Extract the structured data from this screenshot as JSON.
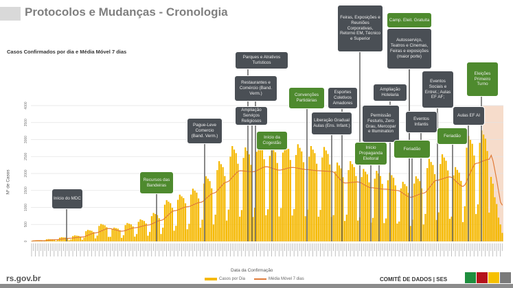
{
  "header": {
    "title": "Protocolos e Mudanças - Cronologia"
  },
  "chart_data": {
    "type": "bar",
    "title": "Casos Confirmados por dia e Média Móvel 7 dias",
    "xlabel": "Data da Confirmação",
    "ylabel": "Nº de Casos",
    "ylim": [
      0,
      4000
    ],
    "yticks": [
      0,
      500,
      1000,
      1500,
      2000,
      2500,
      3000,
      3500,
      4000
    ],
    "grid": true,
    "legend_position": "bottom",
    "colors": {
      "bars": "#f5b800",
      "moving_average": "#e07b39",
      "shaded_recent": "#f6dccb"
    },
    "series": [
      {
        "name": "Casos por Dia",
        "type": "bar",
        "values": [
          9,
          24,
          27,
          26,
          25,
          22,
          7,
          23,
          60,
          68,
          65,
          63,
          55,
          18,
          41,
          108,
          122,
          117,
          113,
          99,
          32,
          59,
          156,
          176,
          169,
          163,
          143,
          46,
          113,
          300,
          338,
          325,
          313,
          275,
          88,
          171,
          456,
          513,
          494,
          475,
          418,
          133,
          135,
          360,
          405,
          390,
          375,
          330,
          105,
          180,
          480,
          540,
          520,
          500,
          440,
          140,
          216,
          576,
          648,
          624,
          600,
          528,
          168,
          279,
          744,
          837,
          806,
          775,
          682,
          217,
          405,
          1080,
          1215,
          1170,
          1125,
          990,
          315,
          459,
          1224,
          1377,
          1326,
          1275,
          1122,
          357,
          518,
          1380,
          1553,
          1495,
          1438,
          1265,
          403,
          639,
          1704,
          1917,
          1846,
          1775,
          1562,
          497,
          788,
          2100,
          2363,
          2275,
          2188,
          1925,
          613,
          936,
          2496,
          2808,
          2704,
          2600,
          2288,
          728,
          923,
          2460,
          2768,
          2665,
          2563,
          2255,
          718,
          990,
          2640,
          2970,
          2860,
          2750,
          2420,
          770,
          945,
          2520,
          2835,
          2730,
          2625,
          2310,
          735,
          981,
          2616,
          2943,
          2834,
          2725,
          2398,
          763,
          954,
          2544,
          2862,
          2756,
          2650,
          2332,
          742,
          936,
          2496,
          2808,
          2704,
          2600,
          2288,
          728,
          927,
          2472,
          2781,
          2678,
          2575,
          2266,
          721,
          774,
          2064,
          2322,
          2236,
          2150,
          1892,
          602,
          788,
          2100,
          2363,
          2275,
          2188,
          1925,
          613,
          711,
          1896,
          2133,
          2054,
          1975,
          1738,
          553,
          693,
          1848,
          2079,
          2002,
          1925,
          1694,
          539,
          675,
          1800,
          2025,
          1950,
          1875,
          1650,
          525,
          585,
          1560,
          1755,
          1690,
          1625,
          1430,
          455,
          639,
          1704,
          1917,
          1846,
          1775,
          1562,
          497,
          810,
          2160,
          2430,
          2340,
          2250,
          1980,
          630,
          855,
          2280,
          2565,
          2470,
          2375,
          2090,
          665,
          729,
          1944,
          2187,
          2106,
          2025,
          1782,
          567,
          1035,
          2760,
          3105,
          2990,
          2875,
          2530,
          805,
          1089,
          2904,
          3267,
          3146,
          3025,
          2662,
          847,
          1900,
          1700,
          1300,
          1100,
          700,
          500,
          250
        ]
      },
      {
        "name": "Média Móvel 7 dias",
        "type": "line",
        "derived_from": "Casos por Dia",
        "window": 7
      }
    ],
    "shaded_last_days": 11
  },
  "annotations": [
    {
      "label": "Início do MDC",
      "style": "dark"
    },
    {
      "label": "Recursos das Bandeiras",
      "style": "green"
    },
    {
      "label": "Pague-Leve Comercio (Band. Verm.)",
      "style": "dark"
    },
    {
      "label": "Parques e Atrativos Turísticos",
      "style": "dark"
    },
    {
      "label": "Restaurantes e Comércio (Band. Verm.)",
      "style": "dark"
    },
    {
      "label": "Ampliação Serviços Religiosos",
      "style": "dark"
    },
    {
      "label": "Início da Cogestão",
      "style": "green"
    },
    {
      "label": "Convenções Partidárias",
      "style": "green"
    },
    {
      "label": "Esportes Coletivos Amadores",
      "style": "dark"
    },
    {
      "label": "Liberação Gradual Aulas (Ens. Infant.)",
      "style": "dark"
    },
    {
      "label": "Feiras, Exposições e Reuniões Corporativas, Retorno EM, Técnico e Superior",
      "style": "dark"
    },
    {
      "label": "Permissão Festuris, Zero Grau, Mercopar e Illumination",
      "style": "dark"
    },
    {
      "label": "Início Propaganda Eleitoral",
      "style": "green"
    },
    {
      "label": "Ampliação Hotelaria",
      "style": "dark"
    },
    {
      "label": "Camp. Eleit. Gratuita",
      "style": "green"
    },
    {
      "label": "Autosserviço, Teatros e Cinemas, Feiras e exposições (maior porte)",
      "style": "dark"
    },
    {
      "label": "Eventos Infantis",
      "style": "dark"
    },
    {
      "label": "Feriadão",
      "style": "green"
    },
    {
      "label": "Eventos Sociais e Entret.; Aulas EF AF;",
      "style": "dark"
    },
    {
      "label": "Feriadão",
      "style": "green"
    },
    {
      "label": "Aulas EF AI",
      "style": "dark"
    },
    {
      "label": "Eleições Primeiro Turno",
      "style": "green"
    }
  ],
  "legend": {
    "bars": "Casos por Dia",
    "line": "Média Móvel 7 dias"
  },
  "footer": {
    "site": "rs.gov.br",
    "committee": "COMITÊ DE DADOS | SES",
    "brand_colors": [
      "#1e8e3e",
      "#b5121b",
      "#f6c000",
      "#7a7a7a"
    ]
  }
}
